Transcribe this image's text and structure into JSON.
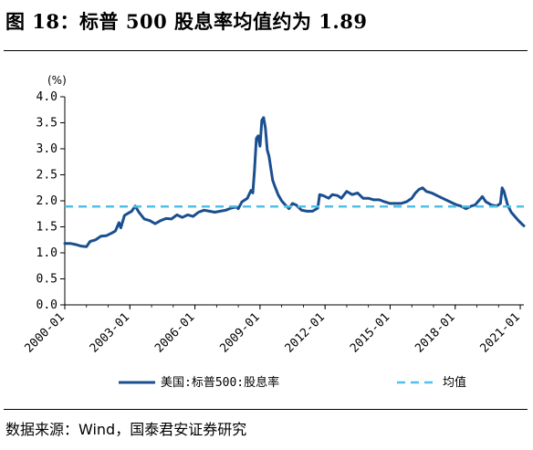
{
  "header": {
    "title": "图 18：标普 500 股息率均值约为 1.89"
  },
  "footer": {
    "source": "数据来源：Wind，国泰君安证券研究"
  },
  "colors": {
    "series": "#1a4f8f",
    "mean": "#4fc0e8",
    "axis": "#000000"
  },
  "chart_data": {
    "type": "line",
    "unit_label": "(%)",
    "ylim": [
      0,
      4
    ],
    "yticks": [
      "0.0",
      "0.5",
      "1.0",
      "1.5",
      "2.0",
      "2.5",
      "3.0",
      "3.5",
      "4.0"
    ],
    "xlim": [
      "2000-01",
      "2021-03"
    ],
    "xticks": [
      "2000-01",
      "2003-01",
      "2006-01",
      "2009-01",
      "2012-01",
      "2015-01",
      "2018-01",
      "2021-01"
    ],
    "grid": false,
    "legend_position": "bottom",
    "series": [
      {
        "name": "美国:标普500:股息率",
        "color": "#1a4f8f",
        "points": [
          [
            "2000-01",
            1.18
          ],
          [
            "2000-04",
            1.18
          ],
          [
            "2000-07",
            1.16
          ],
          [
            "2000-10",
            1.13
          ],
          [
            "2001-01",
            1.12
          ],
          [
            "2001-03",
            1.22
          ],
          [
            "2001-06",
            1.25
          ],
          [
            "2001-09",
            1.32
          ],
          [
            "2001-12",
            1.33
          ],
          [
            "2002-03",
            1.38
          ],
          [
            "2002-05",
            1.42
          ],
          [
            "2002-07",
            1.58
          ],
          [
            "2002-08",
            1.48
          ],
          [
            "2002-10",
            1.72
          ],
          [
            "2002-12",
            1.76
          ],
          [
            "2003-02",
            1.8
          ],
          [
            "2003-04",
            1.9
          ],
          [
            "2003-06",
            1.78
          ],
          [
            "2003-09",
            1.65
          ],
          [
            "2003-12",
            1.62
          ],
          [
            "2004-03",
            1.56
          ],
          [
            "2004-06",
            1.62
          ],
          [
            "2004-09",
            1.66
          ],
          [
            "2004-12",
            1.65
          ],
          [
            "2005-03",
            1.73
          ],
          [
            "2005-06",
            1.68
          ],
          [
            "2005-09",
            1.73
          ],
          [
            "2005-12",
            1.7
          ],
          [
            "2006-03",
            1.78
          ],
          [
            "2006-06",
            1.82
          ],
          [
            "2006-09",
            1.8
          ],
          [
            "2006-12",
            1.78
          ],
          [
            "2007-03",
            1.8
          ],
          [
            "2007-06",
            1.82
          ],
          [
            "2007-09",
            1.86
          ],
          [
            "2007-12",
            1.88
          ],
          [
            "2008-01",
            1.85
          ],
          [
            "2008-03",
            1.98
          ],
          [
            "2008-06",
            2.05
          ],
          [
            "2008-08",
            2.2
          ],
          [
            "2008-09",
            2.15
          ],
          [
            "2008-10",
            2.6
          ],
          [
            "2008-11",
            3.2
          ],
          [
            "2008-12",
            3.25
          ],
          [
            "2009-01",
            3.05
          ],
          [
            "2009-02",
            3.55
          ],
          [
            "2009-03",
            3.6
          ],
          [
            "2009-04",
            3.4
          ],
          [
            "2009-05",
            2.98
          ],
          [
            "2009-06",
            2.85
          ],
          [
            "2009-08",
            2.4
          ],
          [
            "2009-09",
            2.3
          ],
          [
            "2009-11",
            2.12
          ],
          [
            "2010-01",
            2.0
          ],
          [
            "2010-03",
            1.92
          ],
          [
            "2010-05",
            1.85
          ],
          [
            "2010-07",
            1.95
          ],
          [
            "2010-09",
            1.92
          ],
          [
            "2010-12",
            1.82
          ],
          [
            "2011-03",
            1.8
          ],
          [
            "2011-06",
            1.8
          ],
          [
            "2011-09",
            1.86
          ],
          [
            "2011-10",
            2.12
          ],
          [
            "2011-12",
            2.1
          ],
          [
            "2012-03",
            2.05
          ],
          [
            "2012-05",
            2.12
          ],
          [
            "2012-08",
            2.1
          ],
          [
            "2012-10",
            2.05
          ],
          [
            "2013-01",
            2.18
          ],
          [
            "2013-04",
            2.12
          ],
          [
            "2013-07",
            2.15
          ],
          [
            "2013-10",
            2.05
          ],
          [
            "2014-01",
            2.05
          ],
          [
            "2014-04",
            2.02
          ],
          [
            "2014-07",
            2.02
          ],
          [
            "2014-10",
            1.98
          ],
          [
            "2015-01",
            1.95
          ],
          [
            "2015-04",
            1.95
          ],
          [
            "2015-07",
            1.95
          ],
          [
            "2015-10",
            1.98
          ],
          [
            "2016-01",
            2.05
          ],
          [
            "2016-03",
            2.15
          ],
          [
            "2016-05",
            2.22
          ],
          [
            "2016-07",
            2.25
          ],
          [
            "2016-09",
            2.18
          ],
          [
            "2016-12",
            2.15
          ],
          [
            "2017-03",
            2.1
          ],
          [
            "2017-06",
            2.05
          ],
          [
            "2017-09",
            2.0
          ],
          [
            "2017-12",
            1.95
          ],
          [
            "2018-02",
            1.92
          ],
          [
            "2018-04",
            1.9
          ],
          [
            "2018-07",
            1.85
          ],
          [
            "2018-10",
            1.9
          ],
          [
            "2018-12",
            1.92
          ],
          [
            "2019-02",
            2.0
          ],
          [
            "2019-04",
            2.08
          ],
          [
            "2019-06",
            1.98
          ],
          [
            "2019-09",
            1.92
          ],
          [
            "2019-12",
            1.9
          ],
          [
            "2020-02",
            1.95
          ],
          [
            "2020-03",
            2.25
          ],
          [
            "2020-04",
            2.18
          ],
          [
            "2020-06",
            1.92
          ],
          [
            "2020-08",
            1.78
          ],
          [
            "2020-10",
            1.7
          ],
          [
            "2020-12",
            1.62
          ],
          [
            "2021-02",
            1.55
          ],
          [
            "2021-03",
            1.52
          ]
        ]
      },
      {
        "name": "均值",
        "color": "#4fc0e8",
        "style": "dashed",
        "constant": 1.89
      }
    ]
  }
}
